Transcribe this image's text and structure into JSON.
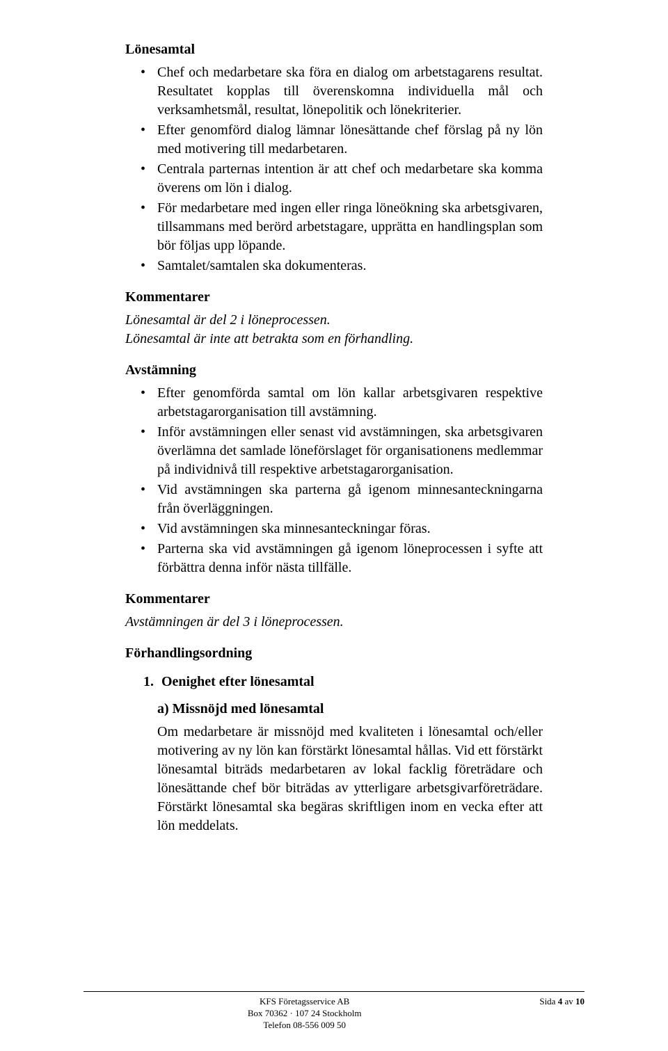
{
  "sections": {
    "lonesamtal": {
      "heading": "Lönesamtal",
      "bullets": [
        "Chef och medarbetare ska föra en dialog om arbetstagarens resultat. Resultatet kopplas till överenskomna individuella mål och verksamhetsmål, resultat, lönepolitik och lönekriterier.",
        "Efter genomförd dialog lämnar lönesättande chef förslag på ny lön med motivering till medarbetaren.",
        "Centrala parternas intention är att chef och medarbetare ska komma överens om lön i dialog.",
        "För medarbetare med ingen eller ringa löneökning ska arbetsgivaren, tillsammans med berörd arbetstagare, upprätta en handlingsplan som bör följas upp löpande.",
        "Samtalet/samtalen ska dokumenteras."
      ]
    },
    "kommentarer1": {
      "heading": "Kommentarer",
      "lines": [
        "Lönesamtal är del 2 i löneprocessen.",
        "Lönesamtal är inte att betrakta som en förhandling."
      ]
    },
    "avstamning": {
      "heading": "Avstämning",
      "bullets": [
        "Efter genomförda samtal om lön kallar arbetsgivaren respektive arbetstagarorganisation till avstämning.",
        "Inför avstämningen eller senast vid avstämningen, ska arbetsgivaren överlämna det samlade löneförslaget för organisationens medlemmar på individnivå till respektive arbetstagarorganisation.",
        "Vid avstämningen ska parterna gå igenom minnesanteckningarna från överläggningen.",
        "Vid avstämningen ska minnesanteckningar föras.",
        "Parterna ska vid avstämningen gå igenom löneprocessen i syfte att förbättra denna inför nästa tillfälle."
      ]
    },
    "kommentarer2": {
      "heading": "Kommentarer",
      "line": "Avstämningen är del 3 i löneprocessen."
    },
    "forhandlingsordning": {
      "heading": "Förhandlingsordning",
      "num_item": "Oenighet efter lönesamtal",
      "sub_heading": "a) Missnöjd med lönesamtal",
      "sub_body": "Om medarbetare är missnöjd med kvaliteten i lönesamtal och/eller motivering av ny lön kan förstärkt lönesamtal hållas. Vid ett förstärkt lönesamtal biträds medarbetaren av lokal facklig företrädare och lönesättande chef bör biträdas av ytterligare arbetsgivarföreträdare. Förstärkt lönesamtal ska begäras skriftligen inom en vecka efter att lön meddelats."
    }
  },
  "footer": {
    "line1": "KFS Företagsservice AB",
    "line2": "Box 70362 · 107 24 Stockholm",
    "line3": "Telefon 08-556 009 50",
    "page_label_prefix": "Sida ",
    "page_current": "4",
    "page_of": " av ",
    "page_total": "10"
  }
}
